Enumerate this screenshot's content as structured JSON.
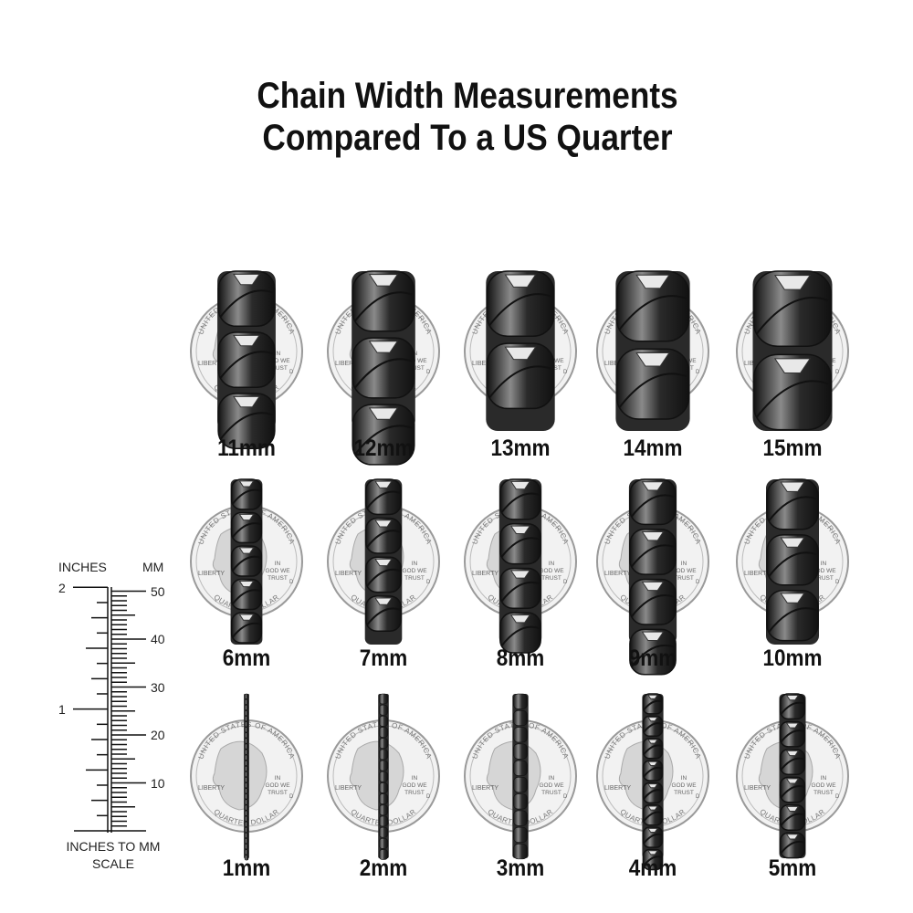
{
  "title": {
    "line1": "Chain Width Measurements",
    "line2": "Compared To a US Quarter"
  },
  "rows": [
    {
      "chains": [
        {
          "label": "11mm",
          "width_mm": 11
        },
        {
          "label": "12mm",
          "width_mm": 12
        },
        {
          "label": "13mm",
          "width_mm": 13
        },
        {
          "label": "14mm",
          "width_mm": 14
        },
        {
          "label": "15mm",
          "width_mm": 15
        }
      ]
    },
    {
      "chains": [
        {
          "label": "6mm",
          "width_mm": 6
        },
        {
          "label": "7mm",
          "width_mm": 7
        },
        {
          "label": "8mm",
          "width_mm": 8
        },
        {
          "label": "9mm",
          "width_mm": 9
        },
        {
          "label": "10mm",
          "width_mm": 10
        }
      ]
    },
    {
      "chains": [
        {
          "label": "1mm",
          "width_mm": 1
        },
        {
          "label": "2mm",
          "width_mm": 2
        },
        {
          "label": "3mm",
          "width_mm": 3
        },
        {
          "label": "4mm",
          "width_mm": 4
        },
        {
          "label": "5mm",
          "width_mm": 5
        }
      ]
    }
  ],
  "coin_text": {
    "top": "UNITED STATES OF AMERICA",
    "left": "LIBERTY",
    "right": "IN GOD WE TRUST",
    "bottom": "QUARTER DOLLAR",
    "mint": "D"
  },
  "scale": {
    "inches_label": "INCHES",
    "mm_label": "MM",
    "inch_ticks": [
      "1",
      "2"
    ],
    "mm_ticks": [
      "10",
      "20",
      "30",
      "40",
      "50"
    ],
    "caption_line1": "INCHES TO MM",
    "caption_line2": "SCALE"
  },
  "colors": {
    "chain": "#2a2a2a",
    "chain_highlight": "#8a8a8a",
    "coin": "#f2f2f2",
    "coin_edge": "#9a9a9a"
  }
}
